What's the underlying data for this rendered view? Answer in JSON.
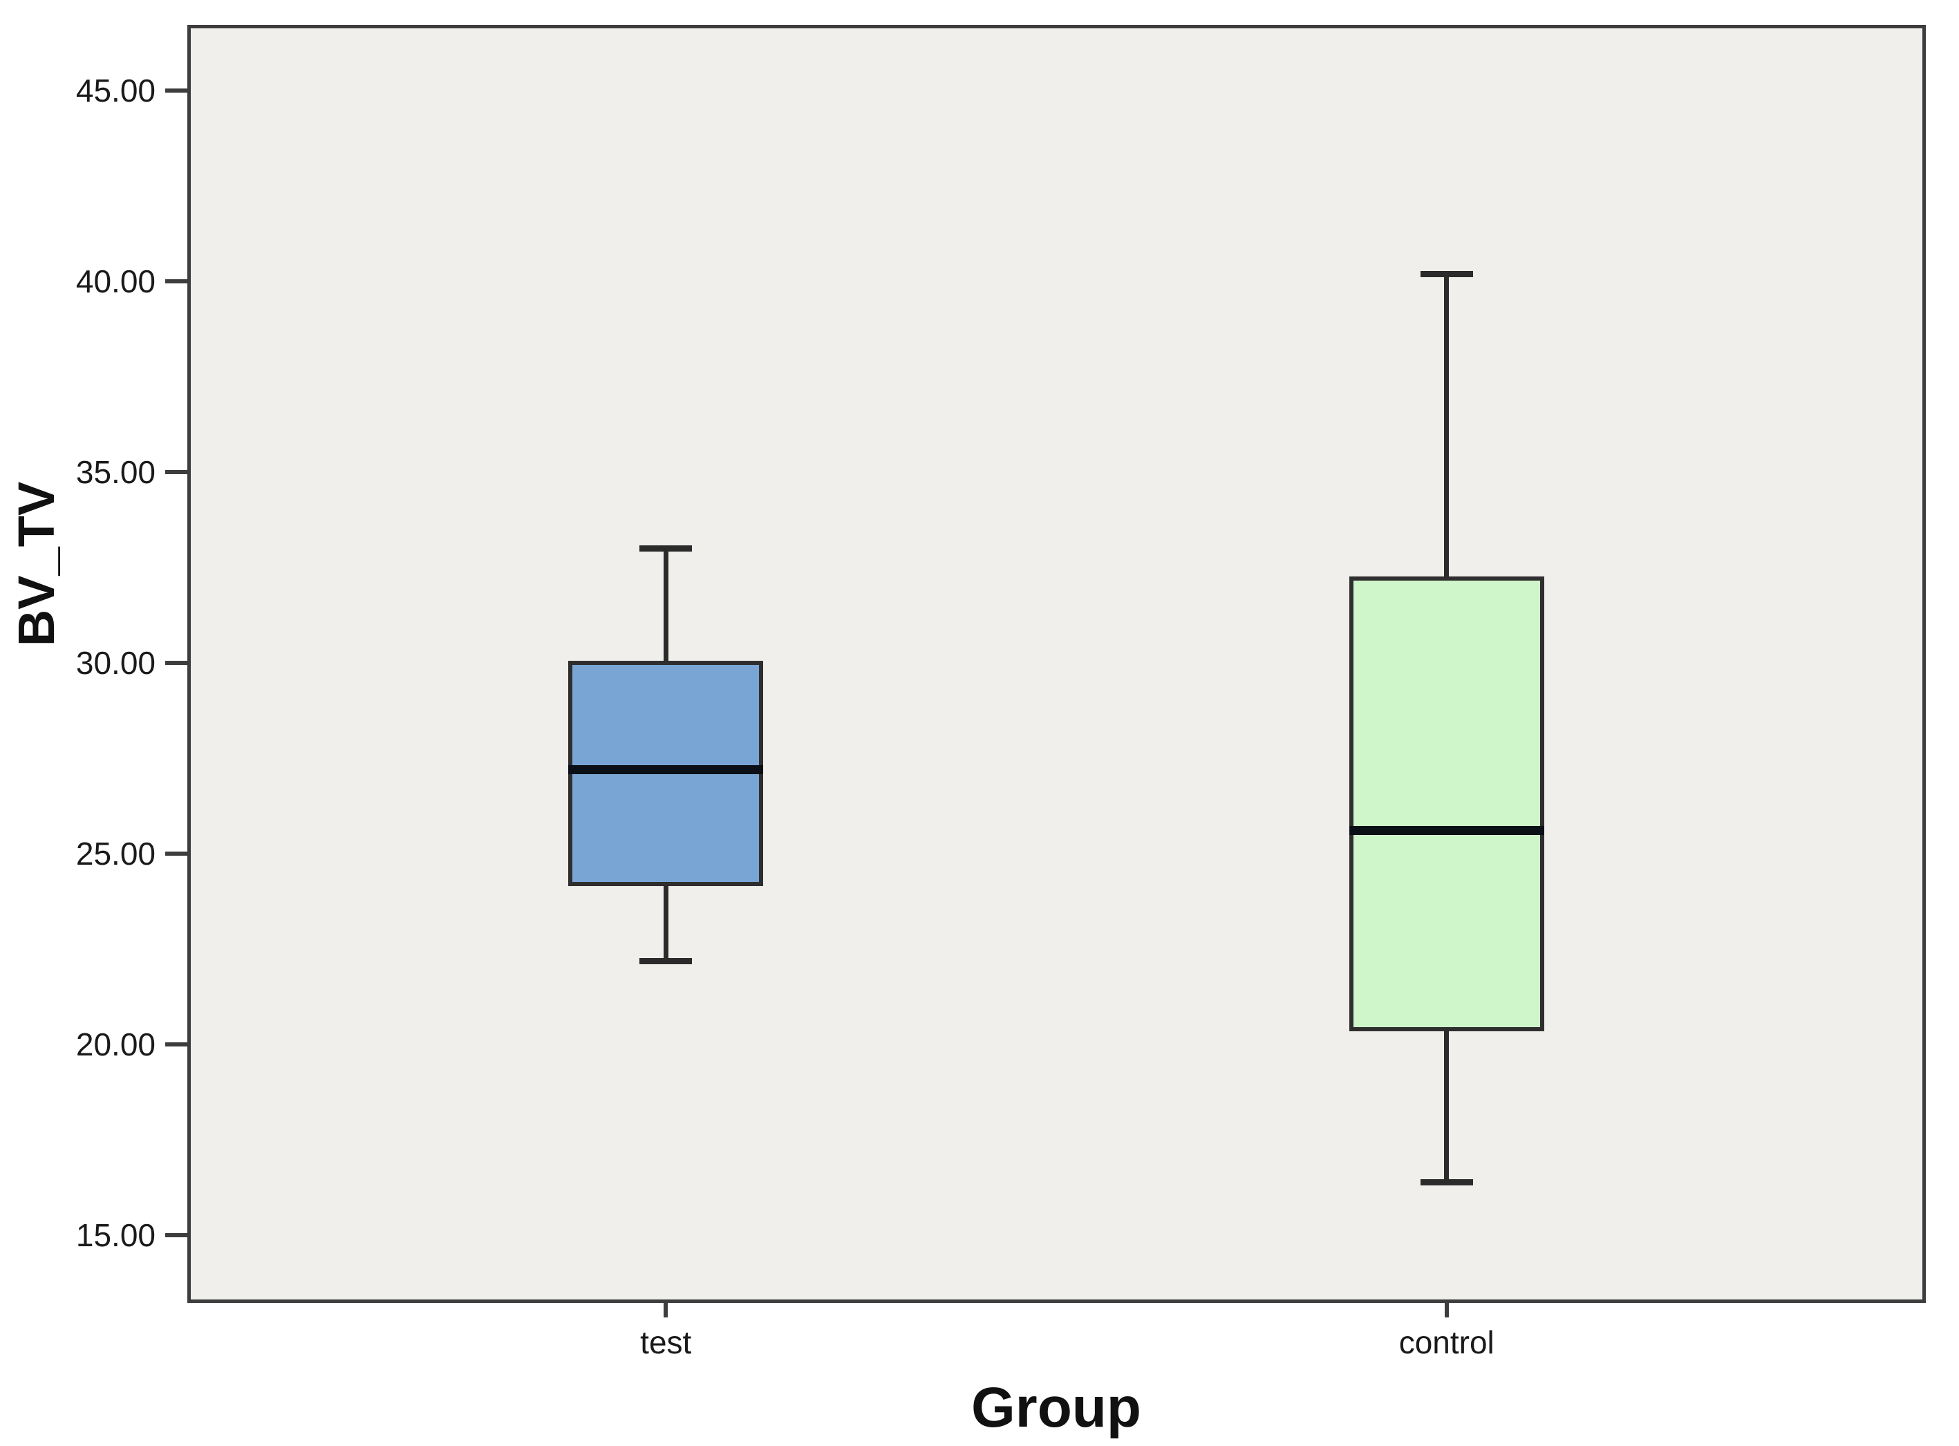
{
  "chart_data": {
    "type": "boxplot",
    "title": "",
    "xlabel": "Group",
    "ylabel": "BV_TV",
    "categories": [
      "test",
      "control"
    ],
    "y_ticks": [
      {
        "label": "45.00",
        "value": 45
      },
      {
        "label": "40.00",
        "value": 40
      },
      {
        "label": "35.00",
        "value": 35
      },
      {
        "label": "30.00",
        "value": 30
      },
      {
        "label": "25.00",
        "value": 25
      },
      {
        "label": "20.00",
        "value": 20
      },
      {
        "label": "15.00",
        "value": 15
      }
    ],
    "ylim": [
      13.28,
      46.68
    ],
    "grid": false,
    "legend": "none",
    "series": [
      {
        "name": "test",
        "whisker_low": 22.2,
        "q1": 24.2,
        "median": 27.2,
        "q3": 30.0,
        "whisker_high": 33.0,
        "fill_color": "#78A5D4"
      },
      {
        "name": "control",
        "whisker_low": 16.4,
        "q1": 20.4,
        "median": 25.6,
        "q3": 32.2,
        "whisker_high": 40.2,
        "fill_color": "#CFF5CA"
      }
    ],
    "colors": {
      "plot_background": "#F0EFEC",
      "page_background": "#FFFFFF",
      "frame_line": "#3d3d3d",
      "box_line": "#2e2e2e",
      "median_line": "#0b0f16",
      "text": "#1a1a1a"
    }
  }
}
